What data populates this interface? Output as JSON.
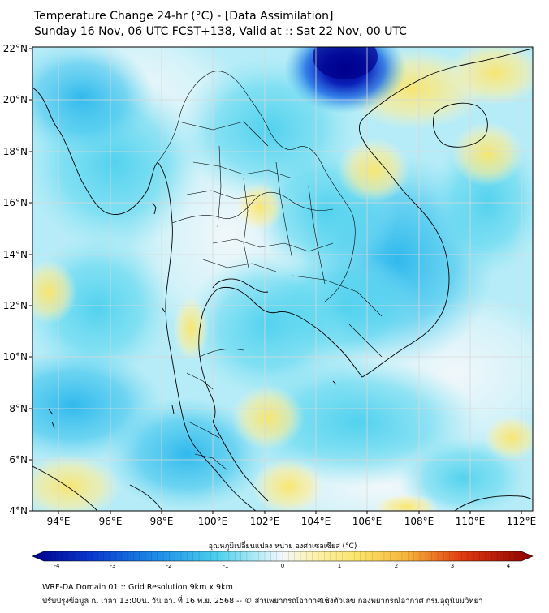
{
  "title": {
    "line1": "Temperature Change 24-hr (°C) - [Data Assimilation]",
    "line2": "Sunday 16 Nov, 06 UTC FCST+138, Valid at :: Sat 22 Nov, 00 UTC"
  },
  "map": {
    "lat_labels": [
      "22°N",
      "20°N",
      "18°N",
      "16°N",
      "14°N",
      "12°N",
      "10°N",
      "8°N",
      "6°N",
      "4°N"
    ],
    "lon_labels": [
      "94°E",
      "96°E",
      "98°E",
      "100°E",
      "102°E",
      "104°E",
      "106°E",
      "108°E",
      "110°E",
      "112°E"
    ],
    "lat_range": [
      4,
      22
    ],
    "lon_range": [
      93,
      112
    ],
    "field_range": [
      -4,
      4
    ],
    "colors": {
      "very_cold": "#00008b",
      "cold": "#1e6ce6",
      "cool": "#4dd0ee",
      "neutral": "#f4f8fa",
      "warm": "#fbe97a",
      "hot": "#e03a10",
      "very_hot": "#8b0000",
      "coast": "#000000",
      "grid": "#d8d8d8"
    }
  },
  "colorbar": {
    "title": "อุณหภูมิเปลี่ยนแปลง หน่วย องศาเซลเซียส (°C)",
    "tick_labels": [
      "-4",
      "-3",
      "-2",
      "-1",
      "0",
      "1",
      "2",
      "3",
      "4"
    ]
  },
  "footer": {
    "line1": "WRF-DA Domain 01 :: Grid Resolution 9km x 9km",
    "line2": "ปรับปรุงข้อมูล ณ เวลา 13:00น. วัน อา. ที่ 16 พ.ย. 2568 -- © ส่วนพยากรณ์อากาศเชิงตัวเลข กองพยากรณ์อากาศ กรมอุตุนิยมวิทยา"
  }
}
